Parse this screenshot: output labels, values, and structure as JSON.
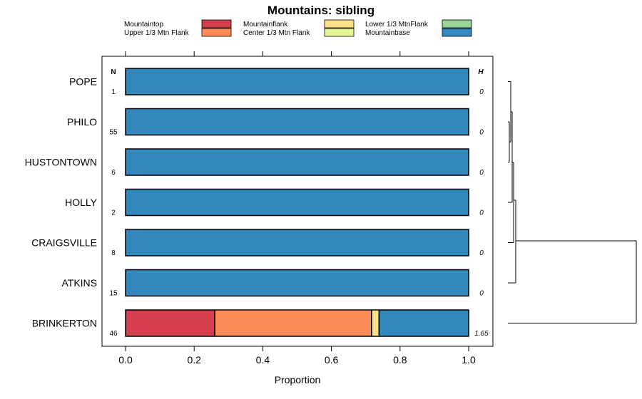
{
  "chart_data": {
    "type": "bar",
    "orientation": "horizontal",
    "stacked": true,
    "title": "Mountains: sibling",
    "xlabel": "Proportion",
    "ylabel": "",
    "xlim": [
      0,
      1
    ],
    "x_ticks": [
      "0.0",
      "0.2",
      "0.4",
      "0.6",
      "0.8",
      "1.0"
    ],
    "n_header": "N",
    "h_header": "H",
    "legend": [
      {
        "name": "Mountaintop",
        "color": "#d53e4f"
      },
      {
        "name": "Upper 1/3 Mtn Flank",
        "color": "#fc8d59"
      },
      {
        "name": "Mountainflank",
        "color": "#fee08b"
      },
      {
        "name": "Center 1/3 Mtn Flank",
        "color": "#e6f598"
      },
      {
        "name": "Lower 1/3 MtnFlank",
        "color": "#99d594"
      },
      {
        "name": "Mountainbase",
        "color": "#3288bd"
      }
    ],
    "categories": [
      "POPE",
      "PHILO",
      "HUSTONTOWN",
      "HOLLY",
      "CRAIGSVILLE",
      "ATKINS",
      "BRINKERTON"
    ],
    "n": [
      "1",
      "55",
      "6",
      "2",
      "8",
      "15",
      "46"
    ],
    "h": [
      "0",
      "0",
      "0",
      "0",
      "0",
      "0",
      "1.65"
    ],
    "series": [
      {
        "name": "Mountaintop",
        "values": [
          0,
          0,
          0,
          0,
          0,
          0,
          0.26
        ]
      },
      {
        "name": "Upper 1/3 Mtn Flank",
        "values": [
          0,
          0,
          0,
          0,
          0,
          0,
          0.457
        ]
      },
      {
        "name": "Mountainflank",
        "values": [
          0,
          0,
          0,
          0,
          0,
          0,
          0.022
        ]
      },
      {
        "name": "Center 1/3 Mtn Flank",
        "values": [
          0,
          0,
          0,
          0,
          0,
          0,
          0
        ]
      },
      {
        "name": "Lower 1/3 MtnFlank",
        "values": [
          0,
          0,
          0,
          0,
          0,
          0,
          0
        ]
      },
      {
        "name": "Mountainbase",
        "values": [
          1,
          1,
          1,
          1,
          1,
          1,
          0.261
        ]
      }
    ],
    "dendrogram": true
  }
}
